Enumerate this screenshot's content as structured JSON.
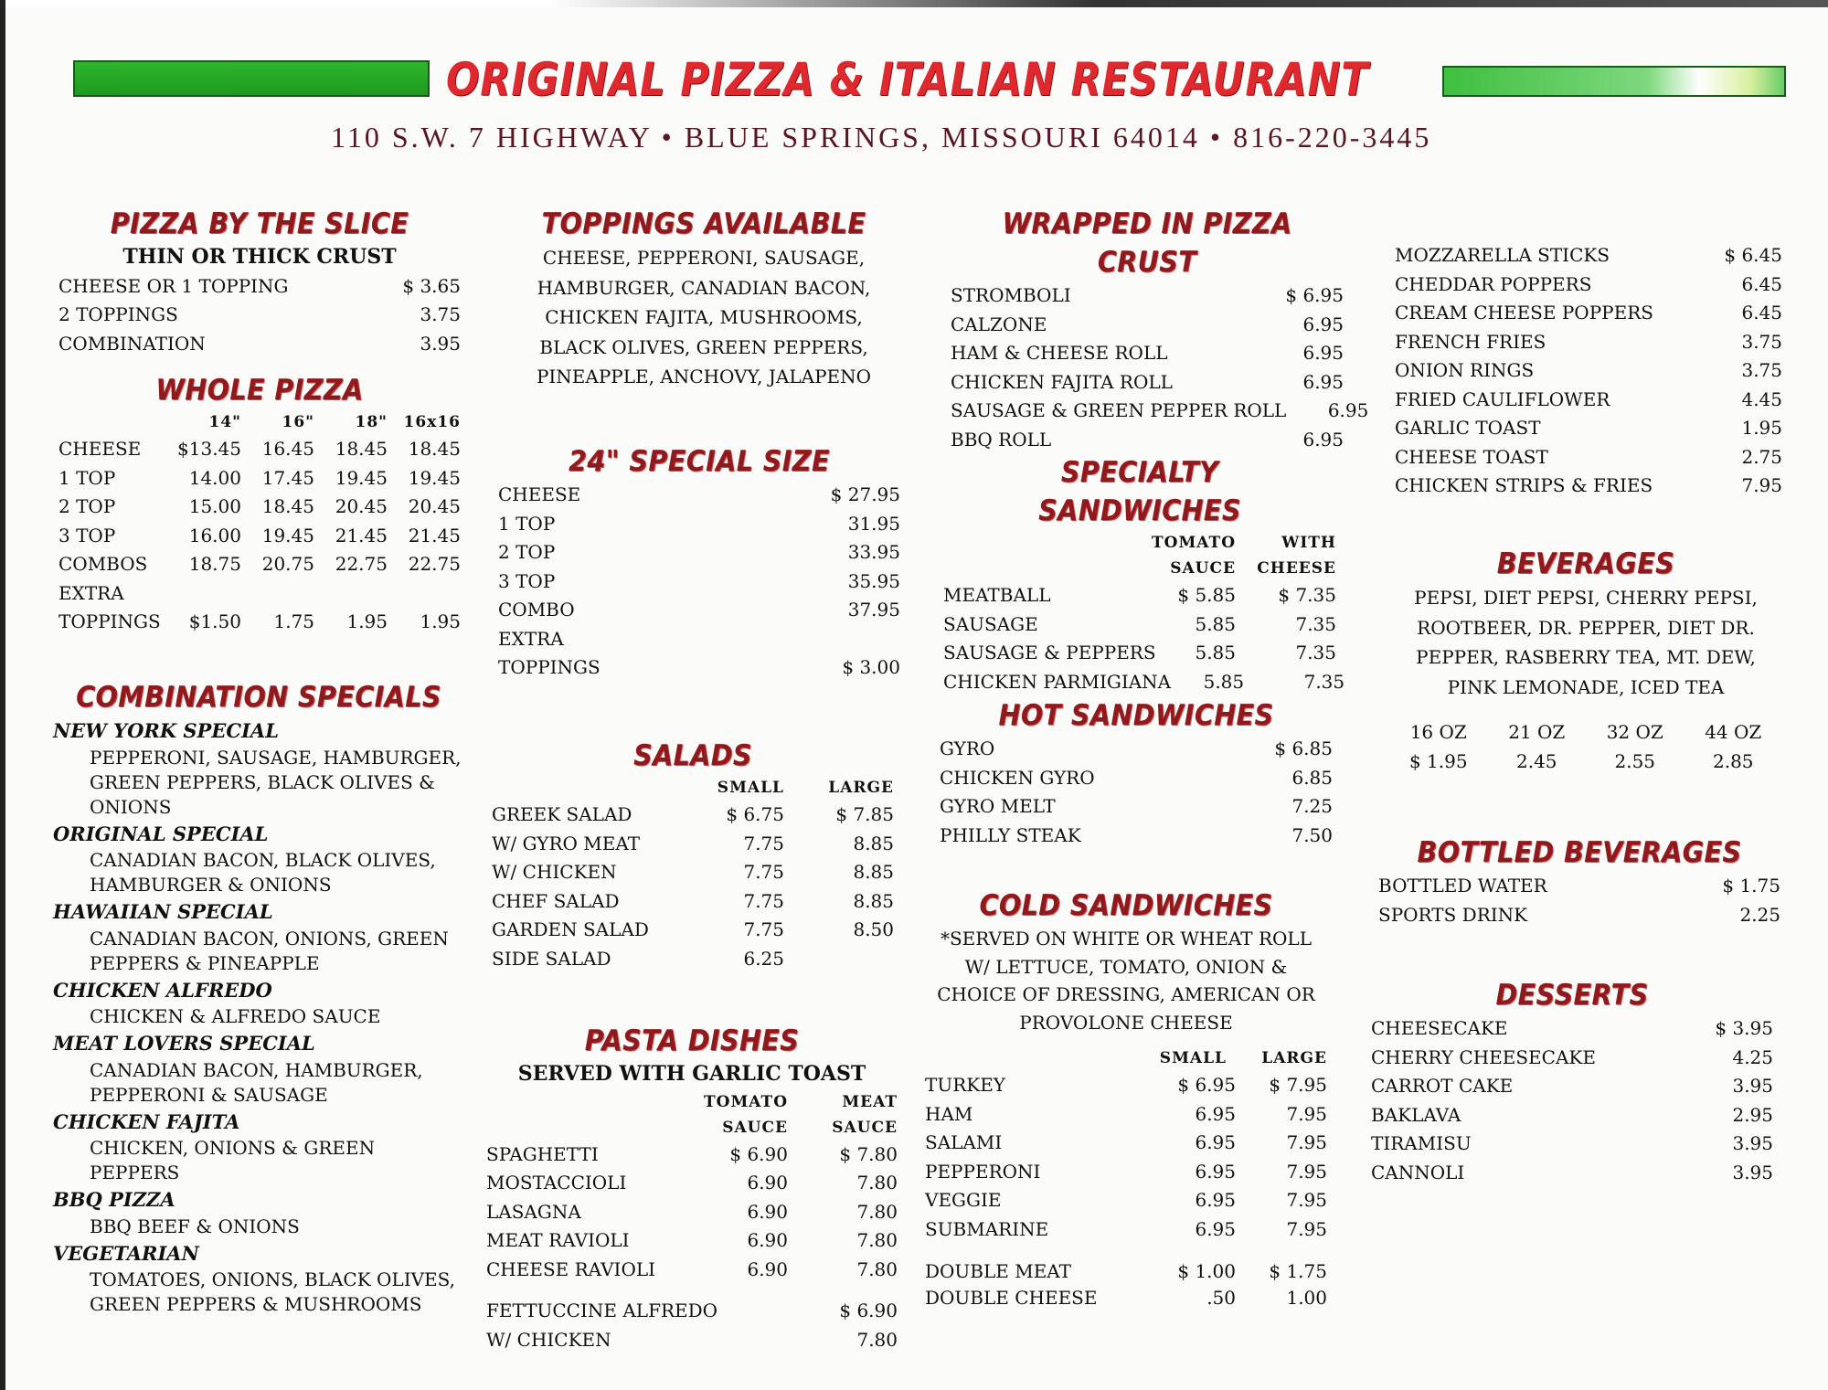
{
  "header": {
    "title": "ORIGINAL PIZZA & ITALIAN RESTAURANT",
    "address": "110 S.W. 7 HIGHWAY • BLUE SPRINGS, MISSOURI 64014 • 816-220-3445",
    "accent_color": "#e0292f",
    "bar_color": "#2fb52f"
  },
  "slice": {
    "heading": "PIZZA BY THE SLICE",
    "sub": "THIN OR THICK CRUST",
    "rows": [
      [
        "CHEESE OR 1 TOPPING",
        "$ 3.65"
      ],
      [
        "2 TOPPINGS",
        "3.75"
      ],
      [
        "COMBINATION",
        "3.95"
      ]
    ]
  },
  "whole": {
    "heading": "WHOLE PIZZA",
    "cols": [
      [
        "",
        "14\"",
        "16\"",
        "18\"",
        "16x16"
      ]
    ],
    "rows": [
      [
        "CHEESE",
        "$13.45",
        "16.45",
        "18.45",
        "18.45"
      ],
      [
        "1 TOP",
        "14.00",
        "17.45",
        "19.45",
        "19.45"
      ],
      [
        "2 TOP",
        "15.00",
        "18.45",
        "20.45",
        "20.45"
      ],
      [
        "3 TOP",
        "16.00",
        "19.45",
        "21.45",
        "21.45"
      ],
      [
        "COMBOS",
        "18.75",
        "20.75",
        "22.75",
        "22.75"
      ],
      [
        "EXTRA",
        "",
        "",
        "",
        ""
      ],
      [
        "TOPPINGS",
        "$1.50",
        "1.75",
        "1.95",
        "1.95"
      ]
    ]
  },
  "combos": {
    "heading": "COMBINATION SPECIALS",
    "items": [
      {
        "name": "NEW YORK SPECIAL",
        "desc": "PEPPERONI, SAUSAGE, HAMBURGER, GREEN PEPPERS, BLACK OLIVES & ONIONS"
      },
      {
        "name": "ORIGINAL SPECIAL",
        "desc": "CANADIAN BACON, BLACK OLIVES, HAMBURGER & ONIONS"
      },
      {
        "name": "HAWAIIAN SPECIAL",
        "desc": "CANADIAN BACON, ONIONS, GREEN PEPPERS & PINEAPPLE"
      },
      {
        "name": "CHICKEN ALFREDO",
        "desc": "CHICKEN & ALFREDO SAUCE"
      },
      {
        "name": "MEAT LOVERS SPECIAL",
        "desc": "CANADIAN BACON, HAMBURGER, PEPPERONI & SAUSAGE"
      },
      {
        "name": "CHICKEN FAJITA",
        "desc": "CHICKEN, ONIONS & GREEN PEPPERS"
      },
      {
        "name": "BBQ PIZZA",
        "desc": "BBQ BEEF & ONIONS"
      },
      {
        "name": "VEGETARIAN",
        "desc": "TOMATOES, ONIONS, BLACK OLIVES, GREEN PEPPERS & MUSHROOMS"
      }
    ]
  },
  "toppings": {
    "heading": "TOPPINGS AVAILABLE",
    "text": "CHEESE, PEPPERONI, SAUSAGE, HAMBURGER, CANADIAN BACON, CHICKEN FAJITA, MUSHROOMS, BLACK OLIVES, GREEN PEPPERS, PINEAPPLE, ANCHOVY, JALAPENO"
  },
  "special24": {
    "heading": "24\" SPECIAL SIZE",
    "rows": [
      [
        "CHEESE",
        "$ 27.95"
      ],
      [
        "1 TOP",
        "31.95"
      ],
      [
        "2 TOP",
        "33.95"
      ],
      [
        "3 TOP",
        "35.95"
      ],
      [
        "COMBO",
        "37.95"
      ],
      [
        "EXTRA",
        ""
      ],
      [
        "TOPPINGS",
        "$ 3.00"
      ]
    ]
  },
  "salads": {
    "heading": "SALADS",
    "cols": [
      [
        "",
        "SMALL",
        "LARGE"
      ]
    ],
    "rows": [
      [
        "GREEK SALAD",
        "$ 6.75",
        "$ 7.85"
      ],
      [
        "W/ GYRO MEAT",
        "7.75",
        "8.85"
      ],
      [
        "W/ CHICKEN",
        "7.75",
        "8.85"
      ],
      [
        "CHEF SALAD",
        "7.75",
        "8.85"
      ],
      [
        "GARDEN SALAD",
        "7.75",
        "8.50"
      ],
      [
        "SIDE SALAD",
        "6.25",
        ""
      ]
    ]
  },
  "pasta": {
    "heading": "PASTA DISHES",
    "sub": "SERVED WITH GARLIC TOAST",
    "cols": [
      [
        "",
        "TOMATO",
        "MEAT"
      ],
      [
        "",
        "SAUCE",
        "SAUCE"
      ]
    ],
    "rows": [
      [
        "SPAGHETTI",
        "$ 6.90",
        "$ 7.80"
      ],
      [
        "MOSTACCIOLI",
        "6.90",
        "7.80"
      ],
      [
        "LASAGNA",
        "6.90",
        "7.80"
      ],
      [
        "MEAT RAVIOLI",
        "6.90",
        "7.80"
      ],
      [
        "CHEESE RAVIOLI",
        "6.90",
        "7.80"
      ]
    ],
    "extra": [
      [
        "FETTUCCINE ALFREDO",
        "$ 6.90"
      ],
      [
        "W/ CHICKEN",
        "7.80"
      ]
    ]
  },
  "wrapped": {
    "heading": "WRAPPED IN PIZZA CRUST",
    "rows": [
      [
        "STROMBOLI",
        "$ 6.95"
      ],
      [
        "CALZONE",
        "6.95"
      ],
      [
        "HAM & CHEESE ROLL",
        "6.95"
      ],
      [
        "CHICKEN FAJITA ROLL",
        "6.95"
      ],
      [
        "SAUSAGE & GREEN PEPPER ROLL",
        "6.95"
      ],
      [
        "BBQ ROLL",
        "6.95"
      ]
    ]
  },
  "specialty": {
    "heading": "SPECIALTY SANDWICHES",
    "cols": [
      [
        "",
        "TOMATO",
        "WITH"
      ],
      [
        "",
        "SAUCE",
        "CHEESE"
      ]
    ],
    "rows": [
      [
        "MEATBALL",
        "$ 5.85",
        "$ 7.35"
      ],
      [
        "SAUSAGE",
        "5.85",
        "7.35"
      ],
      [
        "SAUSAGE & PEPPERS",
        "5.85",
        "7.35"
      ],
      [
        "CHICKEN PARMIGIANA",
        "5.85",
        "7.35"
      ]
    ]
  },
  "hot": {
    "heading": "HOT SANDWICHES",
    "rows": [
      [
        "GYRO",
        "$ 6.85"
      ],
      [
        "CHICKEN GYRO",
        "6.85"
      ],
      [
        "GYRO MELT",
        "7.25"
      ],
      [
        "PHILLY STEAK",
        "7.50"
      ]
    ]
  },
  "cold": {
    "heading": "COLD SANDWICHES",
    "desc": "*SERVED ON WHITE OR WHEAT ROLL W/ LETTUCE, TOMATO, ONION & CHOICE OF DRESSING, AMERICAN OR PROVOLONE CHEESE",
    "cols": [
      [
        "",
        "SMALL",
        "LARGE"
      ]
    ],
    "rows": [
      [
        "TURKEY",
        "$ 6.95",
        "$ 7.95"
      ],
      [
        "HAM",
        "6.95",
        "7.95"
      ],
      [
        "SALAMI",
        "6.95",
        "7.95"
      ],
      [
        "PEPPERONI",
        "6.95",
        "7.95"
      ],
      [
        "VEGGIE",
        "6.95",
        "7.95"
      ],
      [
        "SUBMARINE",
        "6.95",
        "7.95"
      ]
    ],
    "extra": [
      [
        "DOUBLE MEAT",
        "$ 1.00",
        "$ 1.75"
      ],
      [
        "DOUBLE CHEESE",
        ".50",
        "1.00"
      ]
    ]
  },
  "sides": {
    "rows": [
      [
        "MOZZARELLA STICKS",
        "$ 6.45"
      ],
      [
        "CHEDDAR POPPERS",
        "6.45"
      ],
      [
        "CREAM CHEESE POPPERS",
        "6.45"
      ],
      [
        "FRENCH FRIES",
        "3.75"
      ],
      [
        "ONION RINGS",
        "3.75"
      ],
      [
        "FRIED CAULIFLOWER",
        "4.45"
      ],
      [
        "GARLIC TOAST",
        "1.95"
      ],
      [
        "CHEESE TOAST",
        "2.75"
      ],
      [
        "CHICKEN STRIPS & FRIES",
        "7.95"
      ]
    ]
  },
  "beverages": {
    "heading": "BEVERAGES",
    "text": "PEPSI, DIET PEPSI, CHERRY PEPSI, ROOTBEER, DR. PEPPER, DIET DR. PEPPER, RASBERRY TEA, MT. DEW, PINK LEMONADE, ICED TEA",
    "sizes": [
      [
        "16 OZ",
        "21 OZ",
        "32 OZ",
        "44 OZ"
      ],
      [
        "$ 1.95",
        "2.45",
        "2.55",
        "2.85"
      ]
    ]
  },
  "bottled": {
    "heading": "BOTTLED BEVERAGES",
    "rows": [
      [
        "BOTTLED WATER",
        "$ 1.75"
      ],
      [
        "SPORTS DRINK",
        "2.25"
      ]
    ]
  },
  "desserts": {
    "heading": "DESSERTS",
    "rows": [
      [
        "CHEESECAKE",
        "$ 3.95"
      ],
      [
        "CHERRY CHEESECAKE",
        "4.25"
      ],
      [
        "CARROT CAKE",
        "3.95"
      ],
      [
        "BAKLAVA",
        "2.95"
      ],
      [
        "TIRAMISU",
        "3.95"
      ],
      [
        "CANNOLI",
        "3.95"
      ]
    ]
  }
}
